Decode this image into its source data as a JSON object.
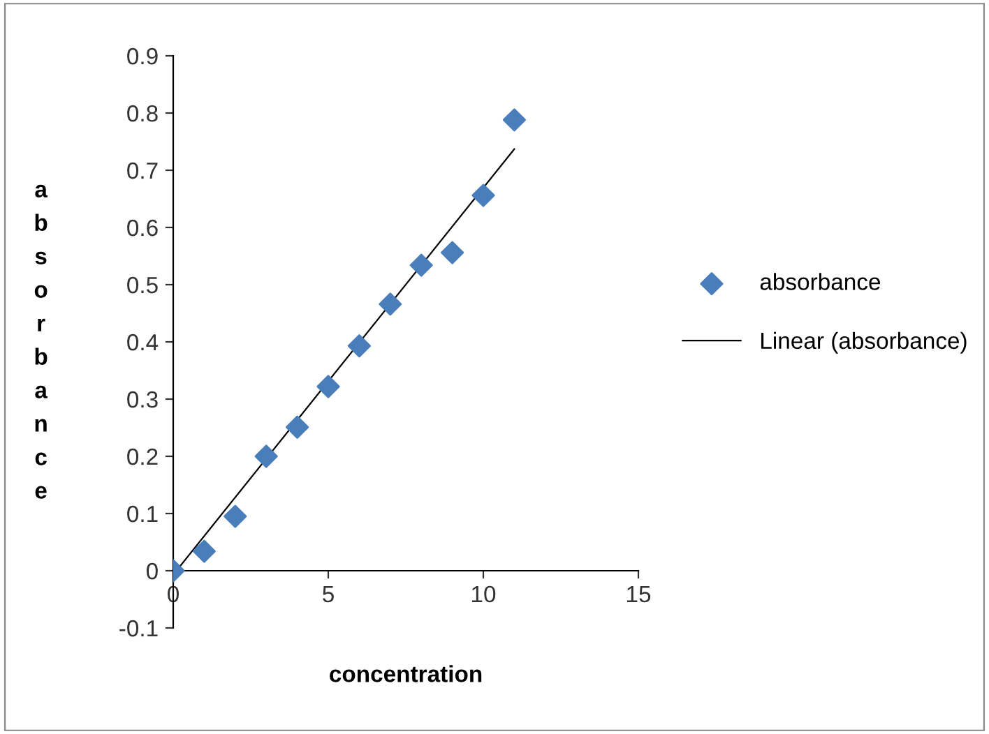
{
  "chart_data": {
    "type": "scatter",
    "xlabel": "concentration",
    "ylabel": "absorbance",
    "xlim": [
      0,
      15
    ],
    "xticks": [
      0,
      5,
      10,
      15
    ],
    "ylim": [
      -0.1,
      0.9
    ],
    "yticks": [
      -0.1,
      0,
      0.1,
      0.2,
      0.3,
      0.4,
      0.5,
      0.6,
      0.7,
      0.8,
      0.9
    ],
    "grid": false,
    "legend": "right",
    "marker": "diamond",
    "series": [
      {
        "name": "absorbance",
        "color": "#4a7ebb",
        "x": [
          0,
          1,
          2,
          3,
          4,
          5,
          6,
          7,
          8,
          9,
          10,
          11
        ],
        "values": [
          0,
          0.034,
          0.095,
          0.2,
          0.251,
          0.322,
          0.393,
          0.466,
          0.534,
          0.556,
          0.656,
          0.788
        ]
      },
      {
        "name": "Linear (absorbance)",
        "type": "line",
        "color": "#000000",
        "line_style": "solid",
        "marker": "none",
        "x": [
          0,
          11
        ],
        "values": [
          -0.007,
          0.737
        ]
      }
    ]
  }
}
